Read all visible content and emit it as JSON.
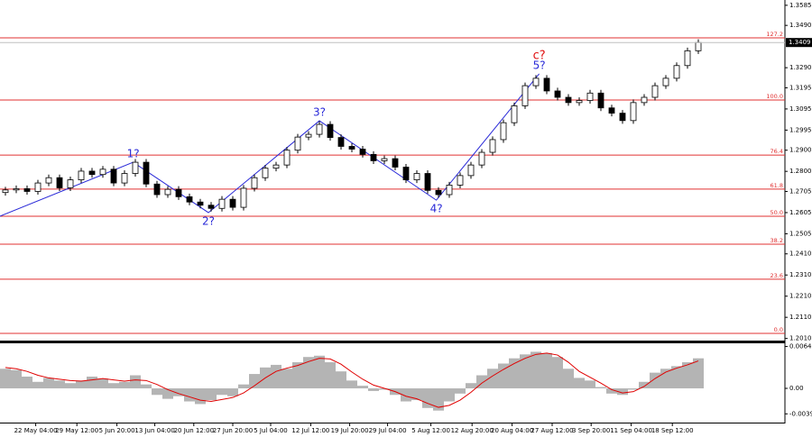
{
  "chart_data": [
    {
      "type": "candlestick",
      "xlim": [
        -0.5,
        72
      ],
      "ylim": [
        1.2,
        1.361
      ],
      "open": [
        1.27,
        1.2712,
        1.2718,
        1.2705,
        1.2745,
        1.277,
        1.2722,
        1.276,
        1.2801,
        1.2785,
        1.281,
        1.2745,
        1.279,
        1.2843,
        1.274,
        1.269,
        1.2715,
        1.268,
        1.2655,
        1.264,
        1.2625,
        1.2668,
        1.263,
        1.272,
        1.277,
        1.2815,
        1.283,
        1.29,
        1.2962,
        1.2975,
        1.3022,
        1.296,
        1.2918,
        1.2905,
        1.288,
        1.285,
        1.286,
        1.282,
        1.276,
        1.279,
        1.271,
        1.269,
        1.2735,
        1.278,
        1.283,
        1.289,
        1.295,
        1.303,
        1.311,
        1.3205,
        1.324,
        1.318,
        1.315,
        1.3125,
        1.3135,
        1.317,
        1.31,
        1.3075,
        1.304,
        1.3125,
        1.315,
        1.3205,
        1.324,
        1.33,
        1.337
      ],
      "high": [
        1.2727,
        1.2733,
        1.2733,
        1.276,
        1.2785,
        1.2785,
        1.2775,
        1.2816,
        1.2816,
        1.2825,
        1.2825,
        1.2805,
        1.2858,
        1.2858,
        1.2755,
        1.273,
        1.273,
        1.2695,
        1.267,
        1.2655,
        1.2683,
        1.2683,
        1.2735,
        1.2785,
        1.283,
        1.2845,
        1.2915,
        1.2977,
        1.299,
        1.3037,
        1.3037,
        1.2975,
        1.2933,
        1.292,
        1.2895,
        1.2875,
        1.2875,
        1.2835,
        1.2805,
        1.2805,
        1.2725,
        1.275,
        1.2795,
        1.2845,
        1.2905,
        1.2965,
        1.3045,
        1.3125,
        1.322,
        1.3255,
        1.3255,
        1.3195,
        1.3165,
        1.315,
        1.3185,
        1.3185,
        1.3115,
        1.309,
        1.314,
        1.3165,
        1.322,
        1.3255,
        1.3315,
        1.3385,
        1.3424
      ],
      "low": [
        1.2685,
        1.2697,
        1.269,
        1.269,
        1.273,
        1.2707,
        1.2707,
        1.2745,
        1.277,
        1.277,
        1.273,
        1.273,
        1.2775,
        1.2725,
        1.2675,
        1.2675,
        1.2665,
        1.264,
        1.2625,
        1.261,
        1.261,
        1.2615,
        1.2615,
        1.2705,
        1.2755,
        1.28,
        1.2815,
        1.2885,
        1.2947,
        1.296,
        1.2945,
        1.2903,
        1.289,
        1.2865,
        1.2835,
        1.2835,
        1.2805,
        1.2745,
        1.2745,
        1.2695,
        1.2675,
        1.2675,
        1.272,
        1.2765,
        1.2815,
        1.2875,
        1.2935,
        1.3015,
        1.3095,
        1.319,
        1.3165,
        1.3135,
        1.311,
        1.311,
        1.312,
        1.3085,
        1.306,
        1.3025,
        1.3025,
        1.311,
        1.3135,
        1.319,
        1.3225,
        1.3285,
        1.3355
      ],
      "close": [
        1.2712,
        1.2718,
        1.2705,
        1.2745,
        1.277,
        1.2722,
        1.276,
        1.2801,
        1.2785,
        1.281,
        1.2745,
        1.279,
        1.2843,
        1.274,
        1.269,
        1.2715,
        1.268,
        1.2655,
        1.264,
        1.2625,
        1.2668,
        1.263,
        1.272,
        1.277,
        1.2815,
        1.283,
        1.29,
        1.2962,
        1.2975,
        1.3022,
        1.296,
        1.2918,
        1.2905,
        1.288,
        1.285,
        1.286,
        1.282,
        1.276,
        1.279,
        1.271,
        1.269,
        1.2735,
        1.278,
        1.283,
        1.289,
        1.295,
        1.303,
        1.311,
        1.3205,
        1.324,
        1.318,
        1.315,
        1.3125,
        1.3135,
        1.317,
        1.31,
        1.3075,
        1.304,
        1.3125,
        1.315,
        1.3205,
        1.324,
        1.33,
        1.337,
        1.3409
      ],
      "yticks": [
        1.3585,
        {
          "value": 1.349,
          "label": "1.3490"
        },
        {
          "value": 1.329,
          "label": "1.3290"
        },
        1.3195,
        1.3095,
        1.2995,
        {
          "value": 1.29,
          "label": "1.2900"
        },
        {
          "value": 1.28,
          "label": "1.2800"
        },
        1.2705,
        1.2605,
        1.2505,
        {
          "value": 1.241,
          "label": "1.2410"
        },
        {
          "value": 1.231,
          "label": "1.2310"
        },
        {
          "value": 1.221,
          "label": "1.2210"
        },
        {
          "value": 1.211,
          "label": "1.2110"
        },
        {
          "value": 1.201,
          "label": "1.2010"
        }
      ],
      "xticks": [
        {
          "value": 2.8,
          "label": "22 May 04:00"
        },
        {
          "value": 6.6,
          "label": "29 May 12:00"
        },
        {
          "value": 10.3,
          "label": "5 Jun 20:00"
        },
        {
          "value": 13.8,
          "label": "13 Jun 04:00"
        },
        {
          "value": 17.4,
          "label": "20 Jun 12:00"
        },
        {
          "value": 21,
          "label": "27 Jun 20:00"
        },
        {
          "value": 24.5,
          "label": "5 Jul 04:00"
        },
        {
          "value": 28.2,
          "label": "12 Jul 12:00"
        },
        {
          "value": 31.8,
          "label": "19 Jul 20:00"
        },
        {
          "value": 35.3,
          "label": "29 Jul 04:00"
        },
        {
          "value": 39.3,
          "label": "5 Aug 12:00"
        },
        {
          "value": 43.1,
          "label": "12 Aug 20:00"
        },
        {
          "value": 46.8,
          "label": "20 Aug 04:00"
        },
        {
          "value": 50.5,
          "label": "27 Aug 12:00"
        },
        {
          "value": 54.1,
          "label": "3 Sep 20:00"
        },
        {
          "value": 57.8,
          "label": "11 Sep 04:00"
        },
        {
          "value": 61.6,
          "label": "18 Sep 12:00"
        }
      ],
      "levels": [
        {
          "label": "127.2",
          "value": 1.3431
        },
        {
          "label": "100.0",
          "value": 1.3137
        },
        {
          "label": "76.4",
          "value": 1.2877
        },
        {
          "label": "61.8",
          "value": 1.2716
        },
        {
          "label": "50.0",
          "value": 1.2588
        },
        {
          "label": "38.2",
          "value": 1.2456
        },
        {
          "label": "23.6",
          "value": 1.229
        },
        {
          "label": "0.0",
          "value": 1.2034
        }
      ],
      "level_color": "#e03030",
      "waves": [
        {
          "x": -0.5,
          "price": 1.2588
        },
        {
          "x": 11.8,
          "price": 1.2843,
          "label": "1?"
        },
        {
          "x": 18.75,
          "price": 1.2605,
          "label": "2?"
        },
        {
          "x": 29,
          "price": 1.3039,
          "label": "3?"
        },
        {
          "x": 39.8,
          "price": 1.2664,
          "label": "4?"
        },
        {
          "x": 49.3,
          "price": 1.3261,
          "label": "5?"
        }
      ],
      "wave_color": "#2a2ad8",
      "degree_label": {
        "text": "c?",
        "x": 49.3,
        "price": 1.3261,
        "color": "#e01010"
      }
    },
    {
      "type": "oscillator",
      "xlim": [
        -0.5,
        72
      ],
      "ylim": [
        -0.0051,
        0.0069
      ],
      "values": [
        0.003,
        0.0028,
        0.0018,
        0.001,
        0.0016,
        0.0012,
        0.0008,
        0.0012,
        0.0018,
        0.0015,
        0.0008,
        0.001,
        0.002,
        0.0006,
        -0.001,
        -0.0016,
        -0.0012,
        -0.002,
        -0.0024,
        -0.0018,
        -0.001,
        -0.0012,
        0.0006,
        0.0022,
        0.0032,
        0.0036,
        0.003,
        0.004,
        0.0048,
        0.005,
        0.004,
        0.0026,
        0.0012,
        0.0004,
        -0.0004,
        -0.0002,
        -0.001,
        -0.002,
        -0.0018,
        -0.003,
        -0.0034,
        -0.002,
        -0.0008,
        0.0008,
        0.002,
        0.003,
        0.0038,
        0.0046,
        0.0052,
        0.0056,
        0.0054,
        0.0048,
        0.003,
        0.0016,
        0.0012,
        0.0002,
        -0.0008,
        -0.001,
        -0.0002,
        0.001,
        0.0024,
        0.003,
        0.0034,
        0.004,
        0.0046
      ],
      "color": "#b4b4b4",
      "signal": [
        0.0032,
        0.003,
        0.0026,
        0.002,
        0.0016,
        0.0014,
        0.0012,
        0.0011,
        0.0013,
        0.0015,
        0.0013,
        0.0011,
        0.0013,
        0.0012,
        0.0006,
        -0.0002,
        -0.0008,
        -0.0013,
        -0.0018,
        -0.002,
        -0.0017,
        -0.0014,
        -0.0007,
        0.0004,
        0.0016,
        0.0026,
        0.0031,
        0.0035,
        0.0041,
        0.0046,
        0.0045,
        0.0037,
        0.0025,
        0.0014,
        0.0005,
        0.0,
        -0.0005,
        -0.0012,
        -0.0016,
        -0.0023,
        -0.0029,
        -0.0026,
        -0.0018,
        -0.0006,
        0.0008,
        0.0019,
        0.0029,
        0.0038,
        0.0046,
        0.0052,
        0.0054,
        0.0051,
        0.004,
        0.0026,
        0.0017,
        0.0008,
        -0.0002,
        -0.0007,
        -0.0005,
        0.0003,
        0.0015,
        0.0025,
        0.0031,
        0.0036,
        0.0042
      ],
      "signal_color": "#e00000",
      "yticks": [
        0.00641,
        {
          "value": 0,
          "label": "0.00"
        },
        -0.0039
      ]
    }
  ]
}
